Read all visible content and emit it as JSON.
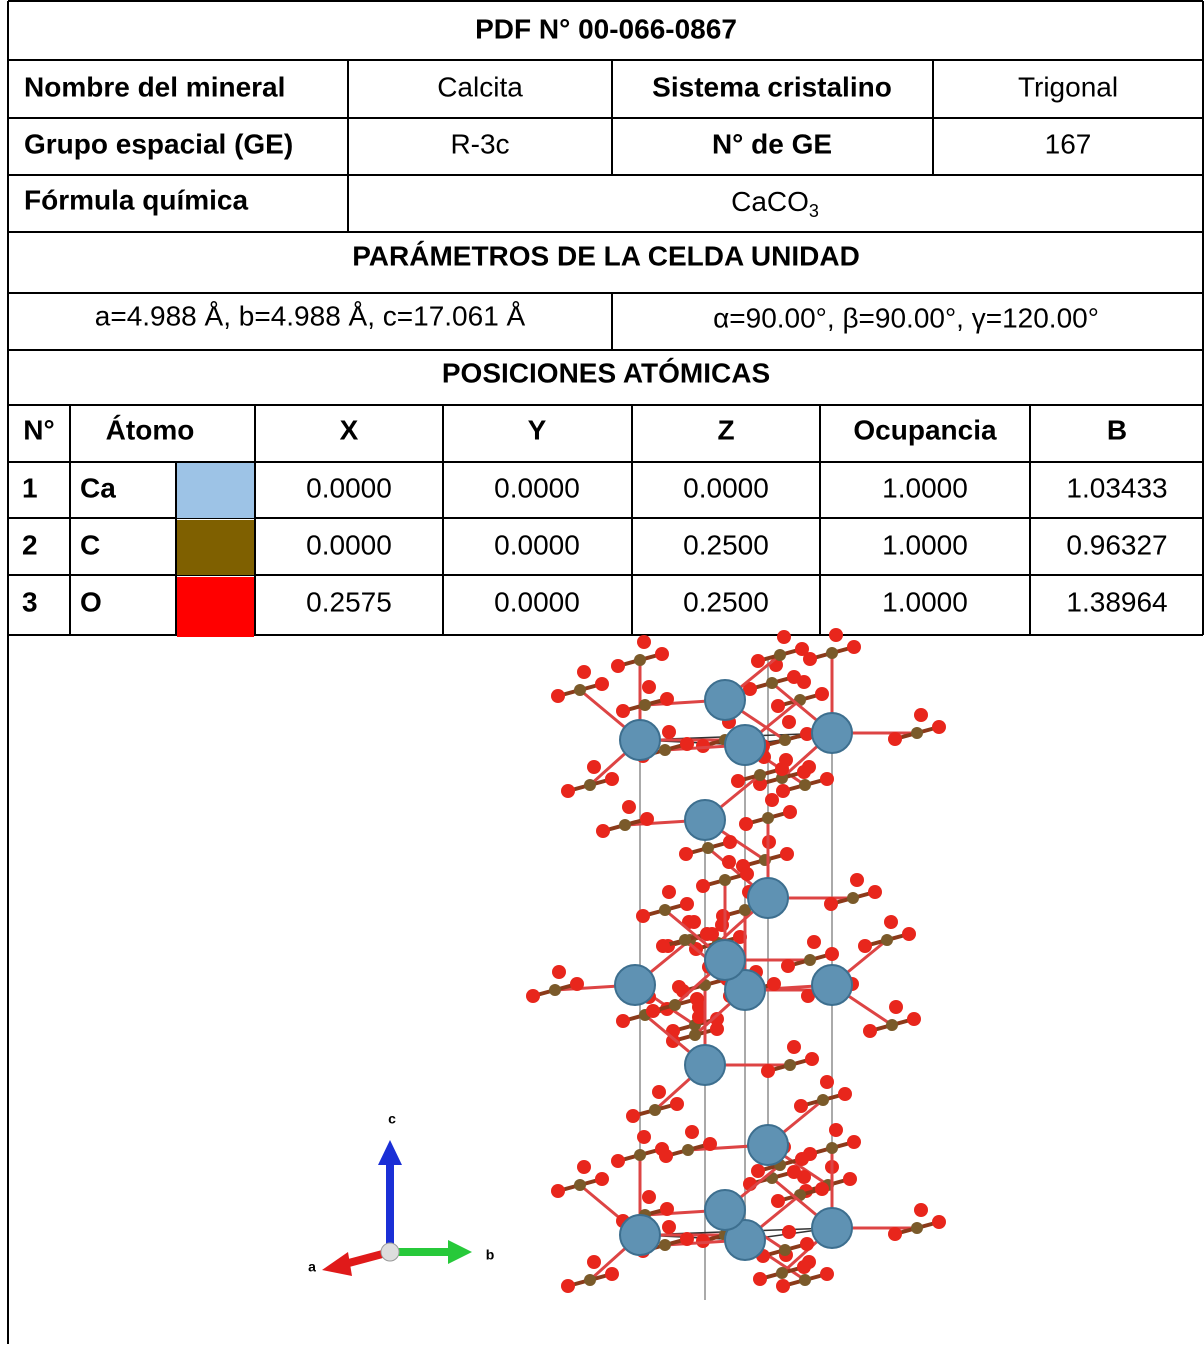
{
  "header": {
    "title": "PDF N° 00-066-0867"
  },
  "info": {
    "rows": [
      [
        "Nombre del mineral",
        "Calcita",
        "Sistema cristalino",
        "Trigonal"
      ],
      [
        "Grupo espacial (GE)",
        "R-3c",
        "N° de GE",
        "167"
      ]
    ],
    "formula_label": "Fórmula química",
    "formula": {
      "base": "CaCO",
      "subscript": "3"
    }
  },
  "cell": {
    "title": "PARÁMETROS DE LA CELDA UNIDAD",
    "lengths": "a=4.988 Å, b=4.988 Å, c=17.061 Å",
    "angles": "α=90.00°, β=90.00°, γ=120.00°"
  },
  "positions": {
    "title": "POSICIONES ATÓMICAS",
    "headers": [
      "N°",
      "Átomo",
      "X",
      "Y",
      "Z",
      "Ocupancia",
      "B"
    ],
    "rows": [
      {
        "n": "1",
        "atom": "Ca",
        "color": "#9dc3e6",
        "x": "0.0000",
        "y": "0.0000",
        "z": "0.0000",
        "occ": "1.0000",
        "b": "1.03433"
      },
      {
        "n": "2",
        "atom": "C",
        "color": "#7f6000",
        "x": "0.0000",
        "y": "0.0000",
        "z": "0.2500",
        "occ": "1.0000",
        "b": "0.96327"
      },
      {
        "n": "3",
        "atom": "O",
        "color": "#ff0000",
        "x": "0.2575",
        "y": "0.0000",
        "z": "0.2500",
        "occ": "1.0000",
        "b": "1.38964"
      }
    ]
  },
  "figure": {
    "axes": [
      "a",
      "b",
      "c"
    ]
  }
}
